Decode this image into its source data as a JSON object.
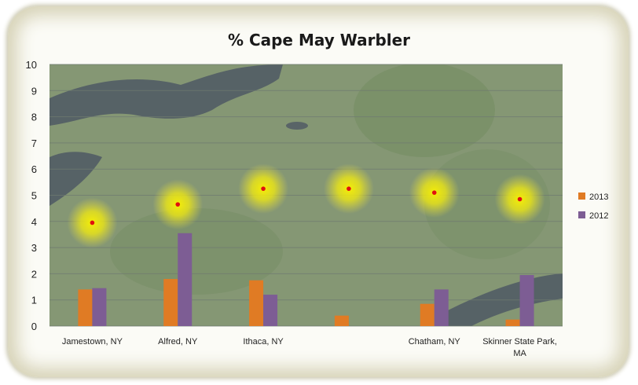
{
  "chart_data": {
    "type": "bar",
    "title": "% Cape May Warbler",
    "xlabel": "",
    "ylabel": "",
    "ylim": [
      0,
      10
    ],
    "yticks": [
      "0",
      "1",
      "2",
      "3",
      "4",
      "5",
      "6",
      "7",
      "8",
      "9",
      "10"
    ],
    "categories": [
      [
        "Jamestown, NY"
      ],
      [
        "Alfred, NY"
      ],
      [
        "Ithaca, NY"
      ],
      [
        ""
      ],
      [
        "Chatham, NY"
      ],
      [
        "Skinner State Park,",
        "MA"
      ]
    ],
    "series": [
      {
        "name": "2013",
        "color": "#e07b24",
        "values": [
          1.4,
          1.8,
          1.75,
          0.4,
          0.85,
          0.25
        ]
      },
      {
        "name": "2012",
        "color": "#7d5d94",
        "values": [
          1.45,
          3.55,
          1.2,
          0,
          1.4,
          1.95
        ]
      }
    ],
    "markers": {
      "color": "#e01010",
      "glow": "#f4f000",
      "values": [
        3.95,
        4.65,
        5.25,
        5.25,
        5.1,
        4.85
      ]
    },
    "grid": true,
    "legend": "right",
    "background": "satellite map of New York State region"
  }
}
